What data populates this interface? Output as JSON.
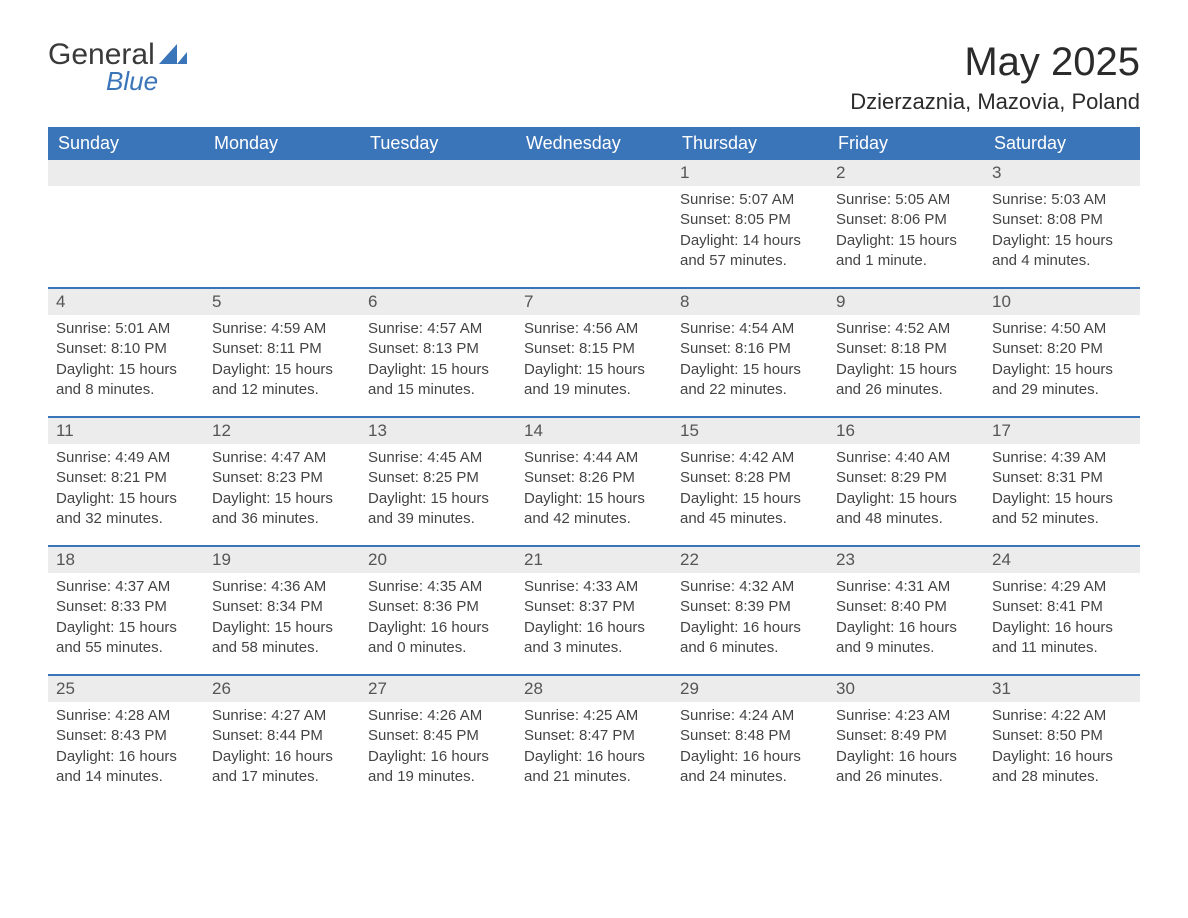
{
  "brand": {
    "word1": "General",
    "word2": "Blue"
  },
  "title": "May 2025",
  "location": "Dzierzaznia, Mazovia, Poland",
  "colors": {
    "header_bg": "#3b75b9",
    "header_text": "#ffffff",
    "daynum_bg": "#ececec",
    "week_border": "#3b75b9",
    "body_text": "#444444",
    "brand_blue": "#3b75b9"
  },
  "day_names": [
    "Sunday",
    "Monday",
    "Tuesday",
    "Wednesday",
    "Thursday",
    "Friday",
    "Saturday"
  ],
  "weeks": [
    [
      {
        "n": "",
        "sr": "",
        "ss": "",
        "dl": ""
      },
      {
        "n": "",
        "sr": "",
        "ss": "",
        "dl": ""
      },
      {
        "n": "",
        "sr": "",
        "ss": "",
        "dl": ""
      },
      {
        "n": "",
        "sr": "",
        "ss": "",
        "dl": ""
      },
      {
        "n": "1",
        "sr": "Sunrise: 5:07 AM",
        "ss": "Sunset: 8:05 PM",
        "dl": "Daylight: 14 hours and 57 minutes."
      },
      {
        "n": "2",
        "sr": "Sunrise: 5:05 AM",
        "ss": "Sunset: 8:06 PM",
        "dl": "Daylight: 15 hours and 1 minute."
      },
      {
        "n": "3",
        "sr": "Sunrise: 5:03 AM",
        "ss": "Sunset: 8:08 PM",
        "dl": "Daylight: 15 hours and 4 minutes."
      }
    ],
    [
      {
        "n": "4",
        "sr": "Sunrise: 5:01 AM",
        "ss": "Sunset: 8:10 PM",
        "dl": "Daylight: 15 hours and 8 minutes."
      },
      {
        "n": "5",
        "sr": "Sunrise: 4:59 AM",
        "ss": "Sunset: 8:11 PM",
        "dl": "Daylight: 15 hours and 12 minutes."
      },
      {
        "n": "6",
        "sr": "Sunrise: 4:57 AM",
        "ss": "Sunset: 8:13 PM",
        "dl": "Daylight: 15 hours and 15 minutes."
      },
      {
        "n": "7",
        "sr": "Sunrise: 4:56 AM",
        "ss": "Sunset: 8:15 PM",
        "dl": "Daylight: 15 hours and 19 minutes."
      },
      {
        "n": "8",
        "sr": "Sunrise: 4:54 AM",
        "ss": "Sunset: 8:16 PM",
        "dl": "Daylight: 15 hours and 22 minutes."
      },
      {
        "n": "9",
        "sr": "Sunrise: 4:52 AM",
        "ss": "Sunset: 8:18 PM",
        "dl": "Daylight: 15 hours and 26 minutes."
      },
      {
        "n": "10",
        "sr": "Sunrise: 4:50 AM",
        "ss": "Sunset: 8:20 PM",
        "dl": "Daylight: 15 hours and 29 minutes."
      }
    ],
    [
      {
        "n": "11",
        "sr": "Sunrise: 4:49 AM",
        "ss": "Sunset: 8:21 PM",
        "dl": "Daylight: 15 hours and 32 minutes."
      },
      {
        "n": "12",
        "sr": "Sunrise: 4:47 AM",
        "ss": "Sunset: 8:23 PM",
        "dl": "Daylight: 15 hours and 36 minutes."
      },
      {
        "n": "13",
        "sr": "Sunrise: 4:45 AM",
        "ss": "Sunset: 8:25 PM",
        "dl": "Daylight: 15 hours and 39 minutes."
      },
      {
        "n": "14",
        "sr": "Sunrise: 4:44 AM",
        "ss": "Sunset: 8:26 PM",
        "dl": "Daylight: 15 hours and 42 minutes."
      },
      {
        "n": "15",
        "sr": "Sunrise: 4:42 AM",
        "ss": "Sunset: 8:28 PM",
        "dl": "Daylight: 15 hours and 45 minutes."
      },
      {
        "n": "16",
        "sr": "Sunrise: 4:40 AM",
        "ss": "Sunset: 8:29 PM",
        "dl": "Daylight: 15 hours and 48 minutes."
      },
      {
        "n": "17",
        "sr": "Sunrise: 4:39 AM",
        "ss": "Sunset: 8:31 PM",
        "dl": "Daylight: 15 hours and 52 minutes."
      }
    ],
    [
      {
        "n": "18",
        "sr": "Sunrise: 4:37 AM",
        "ss": "Sunset: 8:33 PM",
        "dl": "Daylight: 15 hours and 55 minutes."
      },
      {
        "n": "19",
        "sr": "Sunrise: 4:36 AM",
        "ss": "Sunset: 8:34 PM",
        "dl": "Daylight: 15 hours and 58 minutes."
      },
      {
        "n": "20",
        "sr": "Sunrise: 4:35 AM",
        "ss": "Sunset: 8:36 PM",
        "dl": "Daylight: 16 hours and 0 minutes."
      },
      {
        "n": "21",
        "sr": "Sunrise: 4:33 AM",
        "ss": "Sunset: 8:37 PM",
        "dl": "Daylight: 16 hours and 3 minutes."
      },
      {
        "n": "22",
        "sr": "Sunrise: 4:32 AM",
        "ss": "Sunset: 8:39 PM",
        "dl": "Daylight: 16 hours and 6 minutes."
      },
      {
        "n": "23",
        "sr": "Sunrise: 4:31 AM",
        "ss": "Sunset: 8:40 PM",
        "dl": "Daylight: 16 hours and 9 minutes."
      },
      {
        "n": "24",
        "sr": "Sunrise: 4:29 AM",
        "ss": "Sunset: 8:41 PM",
        "dl": "Daylight: 16 hours and 11 minutes."
      }
    ],
    [
      {
        "n": "25",
        "sr": "Sunrise: 4:28 AM",
        "ss": "Sunset: 8:43 PM",
        "dl": "Daylight: 16 hours and 14 minutes."
      },
      {
        "n": "26",
        "sr": "Sunrise: 4:27 AM",
        "ss": "Sunset: 8:44 PM",
        "dl": "Daylight: 16 hours and 17 minutes."
      },
      {
        "n": "27",
        "sr": "Sunrise: 4:26 AM",
        "ss": "Sunset: 8:45 PM",
        "dl": "Daylight: 16 hours and 19 minutes."
      },
      {
        "n": "28",
        "sr": "Sunrise: 4:25 AM",
        "ss": "Sunset: 8:47 PM",
        "dl": "Daylight: 16 hours and 21 minutes."
      },
      {
        "n": "29",
        "sr": "Sunrise: 4:24 AM",
        "ss": "Sunset: 8:48 PM",
        "dl": "Daylight: 16 hours and 24 minutes."
      },
      {
        "n": "30",
        "sr": "Sunrise: 4:23 AM",
        "ss": "Sunset: 8:49 PM",
        "dl": "Daylight: 16 hours and 26 minutes."
      },
      {
        "n": "31",
        "sr": "Sunrise: 4:22 AM",
        "ss": "Sunset: 8:50 PM",
        "dl": "Daylight: 16 hours and 28 minutes."
      }
    ]
  ]
}
